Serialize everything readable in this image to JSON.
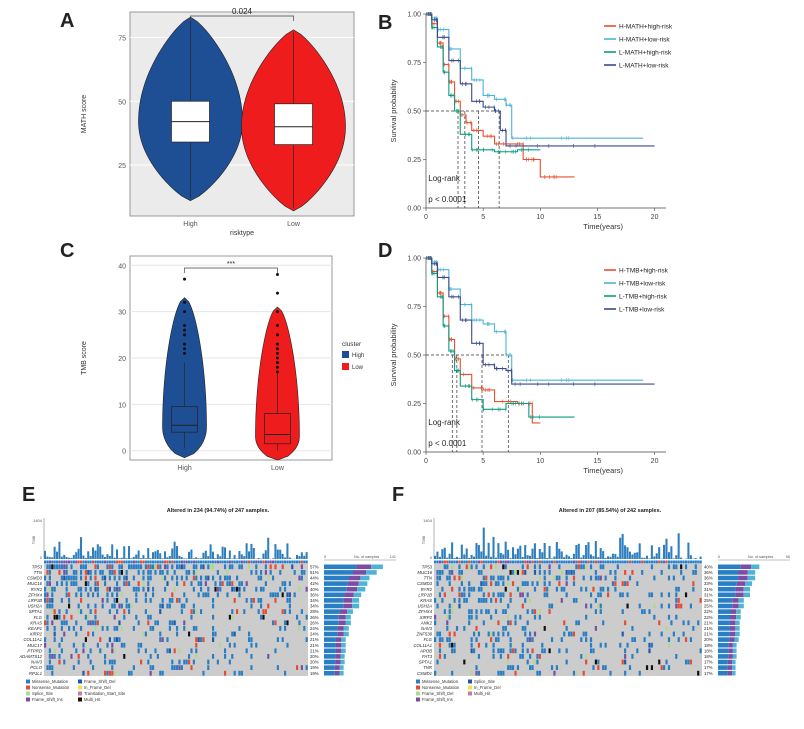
{
  "figure": {
    "panel_labels": [
      "A",
      "B",
      "C",
      "D",
      "E",
      "F"
    ],
    "colors": {
      "high": "#1e4f95",
      "low": "#ee1c1c",
      "km1": "#e8502f",
      "km2": "#4fb3d6",
      "km3": "#0f9b7e",
      "km4": "#3a4a8c",
      "grid": "#e6e6e6"
    }
  },
  "chart_data": [
    {
      "id": "A",
      "type": "violin",
      "ylabel": "MATH score",
      "xlabel": "risktype",
      "categories": [
        "High",
        "Low"
      ],
      "yticks": [
        25,
        50,
        75
      ],
      "ylim": [
        5,
        85
      ],
      "box": [
        {
          "q1": 34,
          "median": 42,
          "q3": 50,
          "min": 12,
          "max": 82
        },
        {
          "q1": 33,
          "median": 40,
          "q3": 49,
          "min": 8,
          "max": 77
        }
      ],
      "significance": "0.024"
    },
    {
      "id": "B",
      "type": "line",
      "ylabel": "Survival probability",
      "xlabel": "Time(years)",
      "xticks": [
        0,
        5,
        10,
        15,
        20
      ],
      "yticks": [
        "0.00",
        "0.25",
        "0.50",
        "0.75",
        "1.00"
      ],
      "annotation": [
        "Log-rank",
        "p < 0.0001"
      ],
      "median_times": [
        2.8,
        3.4,
        4.6,
        6.4
      ],
      "series": [
        {
          "name": "H-MATH+high-risk",
          "x": [
            0,
            0.5,
            1,
            1.5,
            2,
            2.5,
            3,
            3.5,
            4,
            5,
            6,
            8,
            8.5,
            9,
            10,
            11,
            12,
            13
          ],
          "y": [
            1,
            0.95,
            0.85,
            0.74,
            0.65,
            0.55,
            0.48,
            0.44,
            0.4,
            0.37,
            0.33,
            0.33,
            0.25,
            0.25,
            0.16,
            0.16,
            0.16,
            0.16
          ]
        },
        {
          "name": "H-MATH+low-risk",
          "x": [
            0,
            0.5,
            1,
            2,
            3,
            4,
            5,
            6,
            7,
            7.5,
            10,
            15,
            19
          ],
          "y": [
            1,
            0.98,
            0.92,
            0.82,
            0.72,
            0.66,
            0.58,
            0.56,
            0.53,
            0.36,
            0.36,
            0.36,
            0.36
          ]
        },
        {
          "name": "L-MATH+high-risk",
          "x": [
            0,
            0.5,
            1,
            1.5,
            2,
            2.5,
            3,
            4,
            5,
            6,
            7,
            8,
            9,
            10
          ],
          "y": [
            1,
            0.93,
            0.83,
            0.7,
            0.58,
            0.5,
            0.38,
            0.3,
            0.3,
            0.29,
            0.29,
            0.3,
            0.3,
            0.3
          ]
        },
        {
          "name": "L-MATH+low-risk",
          "x": [
            0,
            0.5,
            1,
            2,
            3,
            4,
            5,
            6,
            6.5,
            7,
            10,
            15,
            20
          ],
          "y": [
            1,
            0.97,
            0.88,
            0.76,
            0.64,
            0.55,
            0.52,
            0.5,
            0.4,
            0.32,
            0.32,
            0.32,
            0.32
          ]
        }
      ]
    },
    {
      "id": "C",
      "type": "violin",
      "ylabel": "TMB score",
      "xlabel": "",
      "categories": [
        "High",
        "Low"
      ],
      "yticks": [
        0,
        10,
        20,
        30,
        40
      ],
      "ylim": [
        -2,
        42
      ],
      "box": [
        {
          "q1": 4,
          "median": 5.5,
          "q3": 9.5,
          "min": 0.5,
          "max": 19
        },
        {
          "q1": 1.5,
          "median": 3.5,
          "q3": 8,
          "min": 0,
          "max": 17
        }
      ],
      "outliers": [
        [
          21,
          22,
          23,
          25,
          26,
          27,
          30,
          32,
          37
        ],
        [
          17,
          18,
          19,
          20,
          21,
          22,
          23,
          25,
          27,
          30,
          34,
          38
        ]
      ],
      "significance": "***",
      "legend_title": "cluster",
      "legend": [
        "High",
        "Low"
      ]
    },
    {
      "id": "D",
      "type": "line",
      "ylabel": "Survival probability",
      "xlabel": "Time(years)",
      "xticks": [
        0,
        5,
        10,
        15,
        20
      ],
      "yticks": [
        "0.00",
        "0.25",
        "0.50",
        "0.75",
        "1.00"
      ],
      "annotation": [
        "Log-rank",
        "p < 0.0001"
      ],
      "median_times": [
        2.3,
        2.7,
        4.9,
        7.2
      ],
      "series": [
        {
          "name": "H-TMB+high-risk",
          "x": [
            0,
            0.5,
            1,
            1.5,
            2,
            2.5,
            3,
            4,
            5,
            6,
            8,
            9,
            9.3,
            10
          ],
          "y": [
            1,
            0.93,
            0.82,
            0.7,
            0.58,
            0.48,
            0.4,
            0.33,
            0.32,
            0.26,
            0.25,
            0.25,
            0.15,
            0.15
          ]
        },
        {
          "name": "H-TMB+low-risk",
          "x": [
            0,
            0.5,
            1,
            2,
            3,
            4,
            5,
            6,
            7,
            7.5,
            10,
            15,
            19
          ],
          "y": [
            1,
            0.98,
            0.94,
            0.84,
            0.76,
            0.68,
            0.66,
            0.62,
            0.5,
            0.37,
            0.37,
            0.37,
            0.37
          ]
        },
        {
          "name": "L-TMB+high-risk",
          "x": [
            0,
            0.5,
            1,
            1.5,
            2,
            2.5,
            3,
            4,
            5,
            6,
            7,
            8,
            9,
            10,
            13
          ],
          "y": [
            1,
            0.92,
            0.8,
            0.65,
            0.52,
            0.42,
            0.34,
            0.27,
            0.22,
            0.22,
            0.25,
            0.25,
            0.18,
            0.18,
            0.18
          ]
        },
        {
          "name": "L-TMB+low-risk",
          "x": [
            0,
            0.5,
            1,
            2,
            3,
            4,
            5,
            6,
            7,
            7.5,
            10,
            15,
            20
          ],
          "y": [
            1,
            0.97,
            0.9,
            0.8,
            0.68,
            0.56,
            0.45,
            0.43,
            0.42,
            0.35,
            0.35,
            0.35,
            0.35
          ]
        }
      ]
    },
    {
      "id": "E",
      "type": "heatmap",
      "title": "Altered in 234 (94.74%) of 247 samples.",
      "tmb_axis": [
        "1404",
        "0"
      ],
      "tmb_axis_label": "TMB",
      "count_axis": [
        "0",
        "141"
      ],
      "count_axis_label": "No. of samples",
      "genes": [
        "TP53",
        "TTN",
        "CSMD3",
        "MUC16",
        "RYR2",
        "ZFHX4",
        "LRP1B",
        "USH2A",
        "SPTA1",
        "FLG",
        "KRAS",
        "KEAP1",
        "XIRP2",
        "COL11A1",
        "MUC17",
        "PTPRD",
        "ADAMTS12",
        "NAV3",
        "PCLO",
        "RP1L1"
      ],
      "percents": [
        "57%",
        "51%",
        "44%",
        "42%",
        "40%",
        "36%",
        "34%",
        "34%",
        "28%",
        "26%",
        "26%",
        "24%",
        "24%",
        "21%",
        "21%",
        "21%",
        "20%",
        "20%",
        "19%",
        "19%"
      ],
      "legend": [
        "Missense_Mutation",
        "Nonsense_Mutation",
        "Splice_Site",
        "Frame_Shift_Ins",
        "Frame_Shift_Del",
        "In_Frame_Del",
        "Translation_Start_Site",
        "Multi_Hit"
      ]
    },
    {
      "id": "F",
      "type": "heatmap",
      "title": "Altered in 207 (85.54%) of 242 samples.",
      "tmb_axis": [
        "1404",
        "0"
      ],
      "tmb_axis_label": "TMB",
      "count_axis": [
        "0",
        "96"
      ],
      "count_axis_label": "No. of samples",
      "genes": [
        "TP53",
        "MUC16",
        "TTN",
        "CSMD3",
        "RYR2",
        "LRP1B",
        "KRAS",
        "USH2A",
        "ZFHX4",
        "XIRP2",
        "ANK2",
        "NAV3",
        "ZNF536",
        "FLG",
        "COL11A1",
        "APOB",
        "FAT3",
        "SPTA1",
        "TNR",
        "CSMD1"
      ],
      "percents": [
        "40%",
        "36%",
        "36%",
        "33%",
        "31%",
        "31%",
        "25%",
        "25%",
        "22%",
        "22%",
        "21%",
        "21%",
        "21%",
        "20%",
        "18%",
        "18%",
        "18%",
        "17%",
        "17%",
        "17%"
      ],
      "legend": [
        "Missense_Mutation",
        "Nonsense_Mutation",
        "Frame_Shift_Del",
        "Frame_Shift_Ins",
        "Splice_Site",
        "In_Frame_Del",
        "Multi_Hit"
      ]
    }
  ]
}
